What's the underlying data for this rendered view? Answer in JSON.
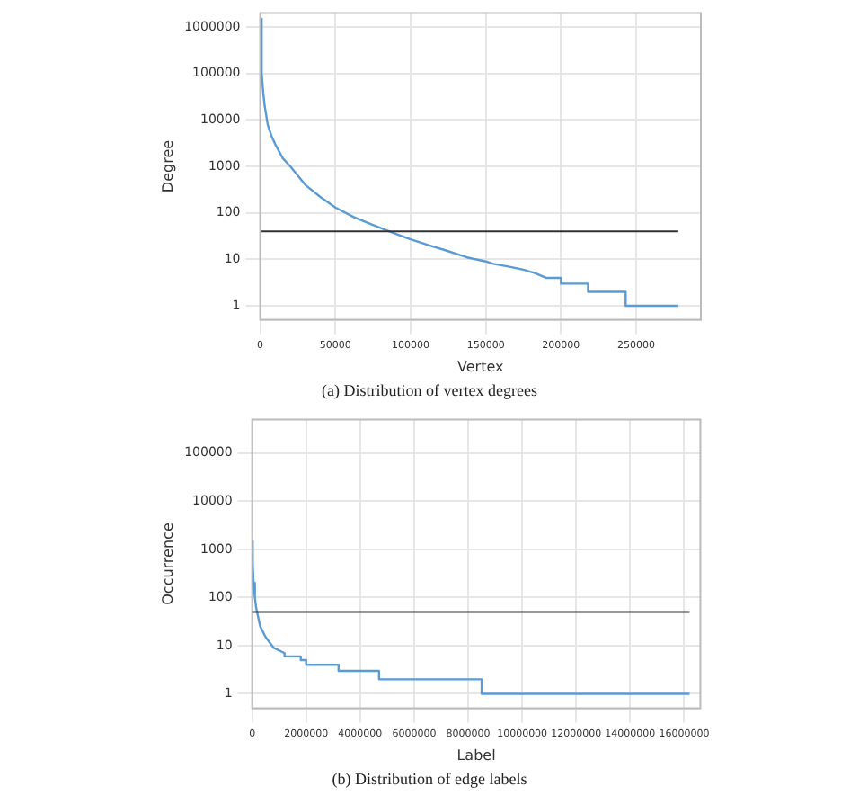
{
  "chart_data": [
    {
      "type": "line",
      "title": "(a) Distribution of vertex degrees",
      "xlabel": "Vertex",
      "ylabel": "Degree",
      "log": "y",
      "grid": true,
      "legend": false,
      "marker": "none",
      "xlim": [
        0,
        293000
      ],
      "xticks": [
        0,
        50000,
        100000,
        150000,
        200000,
        250000
      ],
      "ylim": [
        0.5,
        2000000
      ],
      "yticks": [
        1,
        10,
        100,
        1000,
        10000,
        100000,
        1000000
      ],
      "series": [
        {
          "color": "#5b9bd5",
          "x": [
            300,
            1000,
            2000,
            3000,
            5000,
            7500,
            10000,
            15000,
            20000,
            30000,
            40000,
            50000,
            62500,
            75000,
            87500,
            100000,
            112500,
            125000,
            137500,
            150000,
            155000,
            155000,
            165000,
            165000,
            175000,
            175000,
            183000,
            183000,
            190000,
            190000,
            200000,
            200000,
            218000,
            218000,
            243000,
            243000,
            278000
          ],
          "values": [
            1500000,
            100000,
            40000,
            20000,
            8000,
            4500,
            3000,
            1500,
            1000,
            400,
            220,
            130,
            80,
            55,
            38,
            27,
            20,
            15,
            11,
            9,
            8,
            8,
            7,
            7,
            6,
            6,
            5,
            5,
            4,
            4,
            4,
            3,
            3,
            2,
            2,
            1,
            1
          ]
        }
      ],
      "ref_lines": [
        {
          "axis": "y",
          "value": 40,
          "color": "#333333"
        }
      ]
    },
    {
      "type": "line",
      "title": "(b) Distribution of edge labels",
      "xlabel": "Label",
      "ylabel": "Occurrence",
      "log": "y",
      "grid": true,
      "legend": false,
      "marker": "none",
      "xlim": [
        0,
        16600000
      ],
      "xticks": [
        0,
        2000000,
        4000000,
        6000000,
        8000000,
        10000000,
        12000000,
        14000000,
        16000000
      ],
      "ylim": [
        0.5,
        500000
      ],
      "yticks": [
        1,
        10,
        100,
        1000,
        10000,
        100000
      ],
      "series": [
        {
          "color": "#5b9bd5",
          "x": [
            0,
            20000,
            50000,
            100000,
            150000,
            300000,
            500000,
            800000,
            1200000,
            1200000,
            1800000,
            1800000,
            2000000,
            2000000,
            3200000,
            3200000,
            4700000,
            4700000,
            8500000,
            8500000,
            16200000
          ],
          "values": [
            1500,
            500,
            200,
            100,
            60,
            25,
            15,
            9,
            7,
            6,
            6,
            5,
            5,
            4,
            4,
            3,
            3,
            2,
            2,
            1,
            1
          ]
        }
      ],
      "ref_lines": [
        {
          "axis": "y",
          "value": 50,
          "color": "#333333"
        }
      ]
    }
  ]
}
